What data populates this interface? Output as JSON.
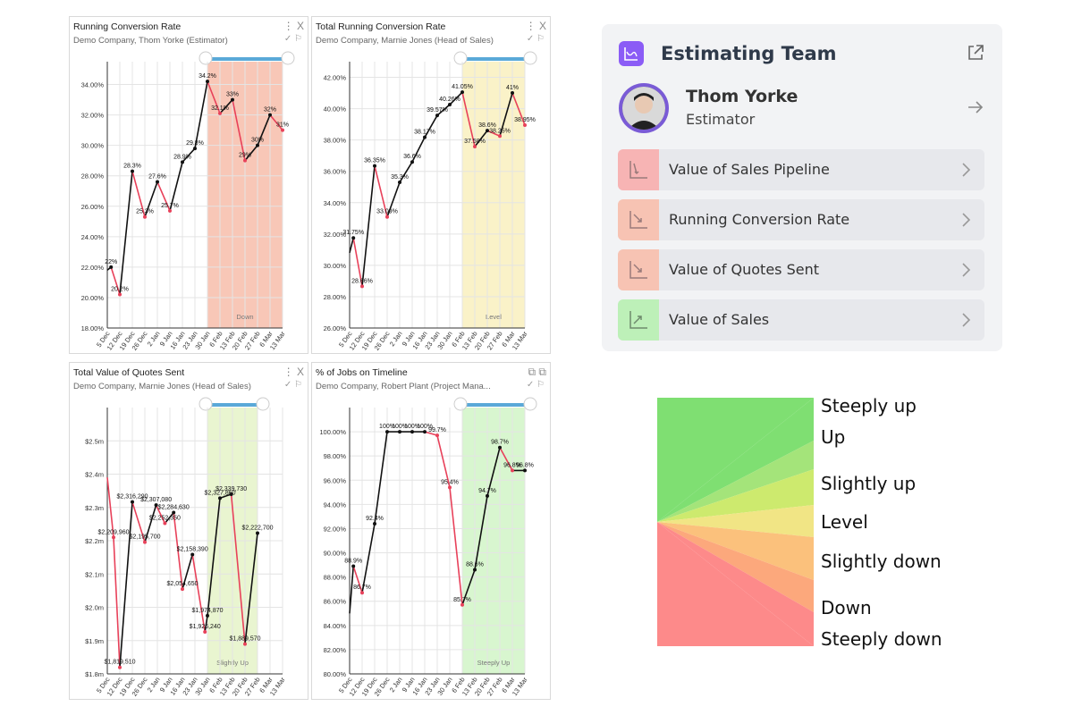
{
  "charts": [
    {
      "title": "Running Conversion Rate",
      "subtitle": "Demo Company, Thom Yorke (Estimator)",
      "type": "line",
      "ylim": [
        18,
        35.5
      ],
      "yticks": [
        18,
        20,
        22,
        24,
        26,
        28,
        30,
        32,
        34
      ],
      "yfmt": "pct2",
      "x_labels": [
        "5 Dec",
        "12 Dec",
        "19 Dec",
        "26 Dec",
        "2 Jan",
        "9 Jan",
        "16 Jan",
        "23 Jan",
        "30 Jan",
        "6 Feb",
        "13 Feb",
        "20 Feb",
        "27 Feb",
        "6 Mar",
        "13 Mar"
      ],
      "points": [
        {
          "x": 0,
          "y": 21.8
        },
        {
          "x": 0.3,
          "y": 22,
          "label": "22%"
        },
        {
          "x": 1,
          "y": 20.2,
          "label": "20.2%"
        },
        {
          "x": 2,
          "y": 28.3,
          "label": "28.3%"
        },
        {
          "x": 3,
          "y": 25.3,
          "label": "25.3%"
        },
        {
          "x": 4,
          "y": 27.6,
          "label": "27.6%"
        },
        {
          "x": 5,
          "y": 25.7,
          "label": "25.7%"
        },
        {
          "x": 6,
          "y": 28.9,
          "label": "28.9%"
        },
        {
          "x": 7,
          "y": 29.8,
          "label": "29.8%"
        },
        {
          "x": 8,
          "y": 34.2,
          "label": "34.2%"
        },
        {
          "x": 9,
          "y": 32.1,
          "label": "32.1%"
        },
        {
          "x": 10,
          "y": 33,
          "label": "33%"
        },
        {
          "x": 11,
          "y": 29,
          "label": "29%"
        },
        {
          "x": 12,
          "y": 30,
          "label": "30%"
        },
        {
          "x": 13,
          "y": 32,
          "label": "32%"
        },
        {
          "x": 14,
          "y": 31,
          "label": "31%"
        }
      ],
      "highlight": {
        "from": 8,
        "to": 14,
        "color": "#f8c7b7",
        "label": "Down"
      }
    },
    {
      "title": "Total Running Conversion Rate",
      "subtitle": "Demo Company, Marnie Jones (Head of Sales)",
      "type": "line",
      "ylim": [
        26,
        43
      ],
      "yticks": [
        26,
        28,
        30,
        32,
        34,
        36,
        38,
        40,
        42
      ],
      "yfmt": "pct2",
      "x_labels": [
        "5 Dec",
        "12 Dec",
        "19 Dec",
        "26 Dec",
        "2 Jan",
        "9 Jan",
        "16 Jan",
        "23 Jan",
        "30 Jan",
        "6 Feb",
        "13 Feb",
        "20 Feb",
        "27 Feb",
        "6 Mar",
        "13 Mar"
      ],
      "points": [
        {
          "x": 0,
          "y": 30.8
        },
        {
          "x": 0.3,
          "y": 31.75,
          "label": "31.75%"
        },
        {
          "x": 1,
          "y": 28.66,
          "label": "28.66%"
        },
        {
          "x": 2,
          "y": 36.35,
          "label": "36.35%"
        },
        {
          "x": 3,
          "y": 33.09,
          "label": "33.09%"
        },
        {
          "x": 4,
          "y": 35.3,
          "label": "35.3%"
        },
        {
          "x": 5,
          "y": 36.6,
          "label": "36.6%"
        },
        {
          "x": 6,
          "y": 38.17,
          "label": "38.17%"
        },
        {
          "x": 7,
          "y": 39.57,
          "label": "39.57%"
        },
        {
          "x": 8,
          "y": 40.26,
          "label": "40.26%"
        },
        {
          "x": 9,
          "y": 41.05,
          "label": "41.05%"
        },
        {
          "x": 10,
          "y": 37.58,
          "label": "37.58%"
        },
        {
          "x": 11,
          "y": 38.6,
          "label": "38.6%"
        },
        {
          "x": 12,
          "y": 38.25,
          "label": "38.25%"
        },
        {
          "x": 13,
          "y": 41,
          "label": "41%"
        },
        {
          "x": 14,
          "y": 38.95,
          "label": "38.95%"
        }
      ],
      "highlight": {
        "from": 9,
        "to": 14,
        "color": "#faf2c8",
        "label": "Level"
      }
    },
    {
      "title": "Total Value of Quotes Sent",
      "subtitle": "Demo Company, Marnie Jones (Head of Sales)",
      "type": "line",
      "ylim": [
        1.8,
        2.6
      ],
      "yticks": [
        1.8,
        1.9,
        2.0,
        2.1,
        2.2,
        2.3,
        2.4,
        2.5
      ],
      "yfmt": "money",
      "x_labels": [
        "5 Dec",
        "12 Dec",
        "19 Dec",
        "26 Dec",
        "2 Jan",
        "9 Jan",
        "16 Jan",
        "23 Jan",
        "30 Jan",
        "6 Feb",
        "13 Feb",
        "20 Feb",
        "27 Feb",
        "6 Mar",
        "13 Mar"
      ],
      "points": [
        {
          "x": 0,
          "y": 2.39
        },
        {
          "x": 0.5,
          "y": 2.20996,
          "label": "$2,209,960"
        },
        {
          "x": 1,
          "y": 1.81951,
          "label": "$1,819,510"
        },
        {
          "x": 2,
          "y": 2.31629,
          "label": "$2,316,290"
        },
        {
          "x": 3,
          "y": 2.1957,
          "label": "$2,195,700"
        },
        {
          "x": 3.9,
          "y": 2.30708,
          "label": "$2,307,080"
        },
        {
          "x": 4.6,
          "y": 2.25235,
          "label": "$2,252,350"
        },
        {
          "x": 5.3,
          "y": 2.28463,
          "label": "$2,284,630"
        },
        {
          "x": 6,
          "y": 2.05465,
          "label": "$2,054,650"
        },
        {
          "x": 6.8,
          "y": 2.15839,
          "label": "$2,158,390"
        },
        {
          "x": 7.8,
          "y": 1.92624,
          "label": "$1,926,240"
        },
        {
          "x": 8,
          "y": 1.97487,
          "label": "$1,974,870"
        },
        {
          "x": 9,
          "y": 2.32786,
          "label": "$2,327,860"
        },
        {
          "x": 9.9,
          "y": 2.33973,
          "label": "$2,339,730"
        },
        {
          "x": 11,
          "y": 1.88957,
          "label": "$1,889,570"
        },
        {
          "x": 12,
          "y": 2.2227,
          "label": "$2,222,700"
        }
      ],
      "highlight": {
        "from": 8,
        "to": 12,
        "color": "#e9f5d0",
        "label": "Slightly Up"
      }
    },
    {
      "title": "% of Jobs on Timeline",
      "subtitle": "Demo Company, Robert Plant (Project Mana...",
      "type": "line",
      "ylim": [
        80,
        102
      ],
      "yticks": [
        80,
        82,
        84,
        86,
        88,
        90,
        92,
        94,
        96,
        98,
        100
      ],
      "yfmt": "pct2",
      "x_labels": [
        "5 Dec",
        "12 Dec",
        "19 Dec",
        "26 Dec",
        "2 Jan",
        "9 Jan",
        "16 Jan",
        "23 Jan",
        "30 Jan",
        "6 Feb",
        "13 Feb",
        "20 Feb",
        "27 Feb",
        "6 Mar",
        "13 Mar"
      ],
      "points": [
        {
          "x": 0,
          "y": 85
        },
        {
          "x": 0.3,
          "y": 88.9,
          "label": "88.9%"
        },
        {
          "x": 1,
          "y": 86.7,
          "label": "86.7%"
        },
        {
          "x": 2,
          "y": 92.4,
          "label": "92.4%"
        },
        {
          "x": 3,
          "y": 100,
          "label": "100%"
        },
        {
          "x": 4,
          "y": 100,
          "label": "100%"
        },
        {
          "x": 5,
          "y": 100,
          "label": "100%"
        },
        {
          "x": 6,
          "y": 100,
          "label": "100%"
        },
        {
          "x": 7,
          "y": 99.7,
          "label": "99.7%"
        },
        {
          "x": 8,
          "y": 95.4,
          "label": "95.4%"
        },
        {
          "x": 9,
          "y": 85.7,
          "label": "85.7%"
        },
        {
          "x": 10,
          "y": 88.6,
          "label": "88.6%"
        },
        {
          "x": 11,
          "y": 94.7,
          "label": "94.7%"
        },
        {
          "x": 12,
          "y": 98.7,
          "label": "98.7%"
        },
        {
          "x": 13,
          "y": 96.8,
          "label": "96.8%"
        },
        {
          "x": 14,
          "y": 96.8,
          "label": "96.8%"
        }
      ],
      "highlight": {
        "from": 9,
        "to": 14,
        "color": "#d8f6cf",
        "label": "Steeply Up"
      }
    }
  ],
  "panel": {
    "title": "Estimating Team",
    "person": {
      "name": "Thom Yorke",
      "role": "Estimator"
    },
    "metrics": [
      {
        "label": "Value of Sales Pipeline",
        "color": "#f7b4b4",
        "trend": "steeply-down"
      },
      {
        "label": "Running Conversion Rate",
        "color": "#f7c3b3",
        "trend": "down"
      },
      {
        "label": "Value of Quotes Sent",
        "color": "#f7c3b3",
        "trend": "down"
      },
      {
        "label": "Value of Sales",
        "color": "#bdf0b8",
        "trend": "up"
      }
    ]
  },
  "legend": {
    "items": [
      {
        "label": "Steeply up",
        "color": "#7fdf72"
      },
      {
        "label": "Up",
        "color": "#a4e47a"
      },
      {
        "label": "Slightly up",
        "color": "#cdea6e"
      },
      {
        "label": "Level",
        "color": "#f1e585"
      },
      {
        "label": "Slightly down",
        "color": "#fbc17c"
      },
      {
        "label": "Down",
        "color": "#fca87c"
      },
      {
        "label": "Steeply down",
        "color": "#fd8a8a"
      }
    ]
  }
}
